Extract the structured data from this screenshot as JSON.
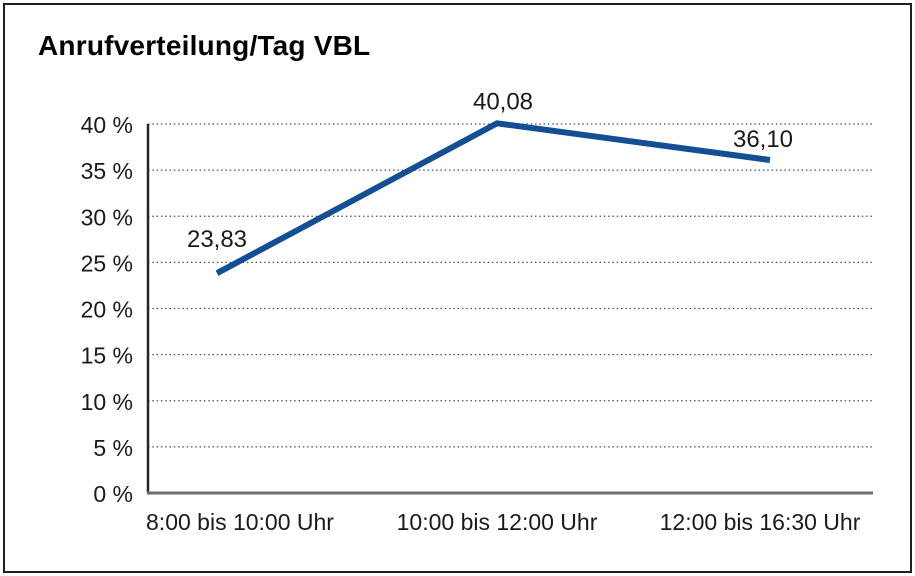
{
  "chart_data": {
    "type": "line",
    "title": "Anrufverteilung/Tag VBL",
    "categories": [
      "8:00 bis 10:00 Uhr",
      "10:00 bis 12:00 Uhr",
      "12:00 bis 16:30 Uhr"
    ],
    "values": [
      23.83,
      40.08,
      36.1
    ],
    "data_labels": [
      "23,83",
      "40,08",
      "36,10"
    ],
    "yticks": [
      {
        "value": 0,
        "label": "0 %"
      },
      {
        "value": 5,
        "label": "5 %"
      },
      {
        "value": 10,
        "label": "10 %"
      },
      {
        "value": 15,
        "label": "15 %"
      },
      {
        "value": 20,
        "label": "20 %"
      },
      {
        "value": 25,
        "label": "25 %"
      },
      {
        "value": 30,
        "label": "30 %"
      },
      {
        "value": 35,
        "label": "35 %"
      },
      {
        "value": 40,
        "label": "40 %"
      }
    ],
    "ylim": [
      0,
      40
    ],
    "xlabel": "",
    "ylabel": "",
    "grid": true,
    "grid_style": "dotted-horizontal",
    "legend": "none",
    "colors": {
      "line": "#134F92",
      "grid": "#4d4d4d",
      "axis_left": "#262626",
      "axis_bottom": "#6e6e6e",
      "text": "#1a1a1a",
      "border": "#1f1f1f",
      "background": "#ffffff"
    }
  }
}
